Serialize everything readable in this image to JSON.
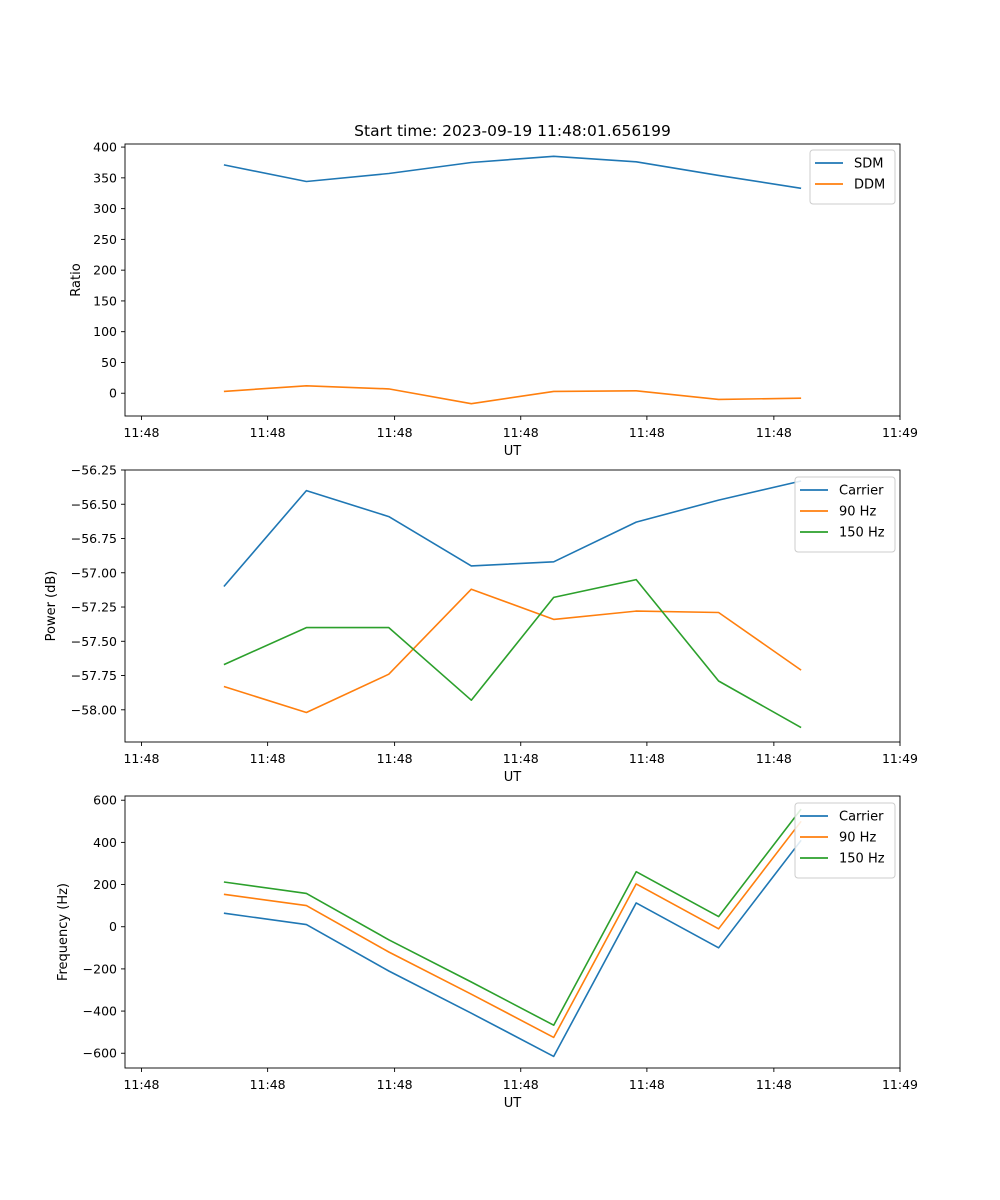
{
  "figure": {
    "title": "Start time: 2023-09-19 11:48:01.656199"
  },
  "chart_data": [
    {
      "id": "ratio",
      "type": "line",
      "title": "Start time: 2023-09-19 11:48:01.656199",
      "xlabel": "UT",
      "ylabel": "Ratio",
      "x": [
        1,
        2,
        3,
        4,
        5,
        6,
        7,
        8
      ],
      "xlim": [
        -0.2,
        9.2
      ],
      "ylim": [
        -37,
        405
      ],
      "yticks": [
        0,
        50,
        100,
        150,
        200,
        250,
        300,
        350,
        400
      ],
      "ytick_labels": [
        "0",
        "50",
        "100",
        "150",
        "200",
        "250",
        "300",
        "350",
        "400"
      ],
      "xticks": [
        0,
        1.53,
        3.07,
        4.6,
        6.13,
        7.67,
        9.2
      ],
      "xtick_labels": [
        "11:48",
        "11:48",
        "11:48",
        "11:48",
        "11:48",
        "11:48",
        "11:49"
      ],
      "legend_position": "top-right",
      "grid": false,
      "series": [
        {
          "name": "SDM",
          "color": "#1f77b4",
          "values": [
            371,
            344,
            357,
            375,
            385,
            376,
            354,
            333
          ]
        },
        {
          "name": "DDM",
          "color": "#ff7f0e",
          "values": [
            3,
            12,
            7,
            -17,
            3,
            4,
            -10,
            -8
          ]
        }
      ]
    },
    {
      "id": "power",
      "type": "line",
      "xlabel": "UT",
      "ylabel": "Power (dB)",
      "x": [
        1,
        2,
        3,
        4,
        5,
        6,
        7,
        8
      ],
      "xlim": [
        -0.2,
        9.2
      ],
      "ylim": [
        -58.235,
        -56.25
      ],
      "yticks": [
        -58.0,
        -57.75,
        -57.5,
        -57.25,
        -57.0,
        -56.75,
        -56.5,
        -56.25
      ],
      "ytick_labels": [
        "−58.00",
        "−57.75",
        "−57.50",
        "−57.25",
        "−57.00",
        "−56.75",
        "−56.50",
        "−56.25"
      ],
      "xticks": [
        0,
        1.53,
        3.07,
        4.6,
        6.13,
        7.67,
        9.2
      ],
      "xtick_labels": [
        "11:48",
        "11:48",
        "11:48",
        "11:48",
        "11:48",
        "11:48",
        "11:49"
      ],
      "legend_position": "top-right",
      "grid": false,
      "series": [
        {
          "name": "Carrier",
          "color": "#1f77b4",
          "values": [
            -57.1,
            -56.4,
            -56.59,
            -56.95,
            -56.92,
            -56.63,
            -56.47,
            -56.33
          ]
        },
        {
          "name": "90 Hz",
          "color": "#ff7f0e",
          "values": [
            -57.83,
            -58.02,
            -57.74,
            -57.12,
            -57.34,
            -57.28,
            -57.29,
            -57.71
          ]
        },
        {
          "name": "150 Hz",
          "color": "#2ca02c",
          "values": [
            -57.67,
            -57.4,
            -57.4,
            -57.93,
            -57.18,
            -57.05,
            -57.79,
            -58.13
          ]
        }
      ]
    },
    {
      "id": "frequency",
      "type": "line",
      "xlabel": "UT",
      "ylabel": "Frequency (Hz)",
      "x": [
        1,
        2,
        3,
        4,
        5,
        6,
        7,
        8
      ],
      "xlim": [
        -0.2,
        9.2
      ],
      "ylim": [
        -670,
        620
      ],
      "yticks": [
        -600,
        -400,
        -200,
        0,
        200,
        400,
        600
      ],
      "ytick_labels": [
        "−600",
        "−400",
        "−200",
        "0",
        "200",
        "400",
        "600"
      ],
      "xticks": [
        0,
        1.53,
        3.07,
        4.6,
        6.13,
        7.67,
        9.2
      ],
      "xtick_labels": [
        "11:48",
        "11:48",
        "11:48",
        "11:48",
        "11:48",
        "11:48",
        "11:49"
      ],
      "legend_position": "top-right",
      "grid": false,
      "series": [
        {
          "name": "Carrier",
          "color": "#1f77b4",
          "values": [
            64,
            10,
            -210,
            -410,
            -615,
            113,
            -100,
            410
          ]
        },
        {
          "name": "90 Hz",
          "color": "#ff7f0e",
          "values": [
            154,
            100,
            -120,
            -320,
            -525,
            203,
            -10,
            500
          ]
        },
        {
          "name": "150 Hz",
          "color": "#2ca02c",
          "values": [
            212,
            158,
            -62,
            -262,
            -467,
            261,
            48,
            558
          ]
        }
      ]
    }
  ]
}
